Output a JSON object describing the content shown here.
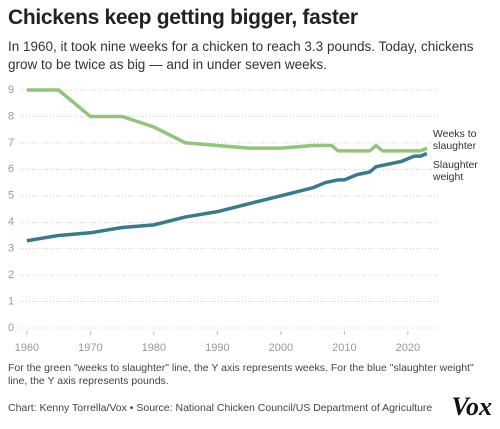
{
  "chart_data": {
    "type": "line",
    "title": "Chickens keep getting bigger, faster",
    "subtitle": "In 1960, it took nine weeks for a chicken to reach 3.3 pounds. Today, chickens grow to be twice as big — and in under seven weeks.",
    "note": "For the green \"weeks to slaughter\" line, the Y axis represents weeks. For the blue \"slaughter weight\" line, the Y axis represents pounds.",
    "source": "Chart: Kenny Torrella/Vox • Source: National Chicken Council/US Department of Agriculture",
    "logo": "Vox",
    "xlim": [
      1957.5,
      2025
    ],
    "xticks": [
      1960,
      1970,
      1980,
      1990,
      2000,
      2010,
      2020
    ],
    "ylim": [
      0,
      9
    ],
    "yticks": [
      0,
      1,
      2,
      3,
      4,
      5,
      6,
      7,
      8,
      9
    ],
    "grid": true,
    "series": [
      {
        "name": "Weeks to slaughter",
        "color": "#93c47d",
        "x": [
          1960,
          1965,
          1970,
          1975,
          1980,
          1985,
          1990,
          1995,
          2000,
          2005,
          2007,
          2008,
          2009,
          2010,
          2012,
          2014,
          2015,
          2016,
          2018,
          2020,
          2022,
          2023
        ],
        "values": [
          9,
          9,
          8,
          8,
          7.6,
          7,
          6.9,
          6.8,
          6.8,
          6.9,
          6.9,
          6.9,
          6.7,
          6.7,
          6.7,
          6.7,
          6.9,
          6.7,
          6.7,
          6.7,
          6.7,
          6.8
        ]
      },
      {
        "name": "Slaughter weight",
        "color": "#3b7b89",
        "x": [
          1960,
          1965,
          1970,
          1975,
          1980,
          1985,
          1990,
          1995,
          2000,
          2005,
          2007,
          2009,
          2010,
          2012,
          2014,
          2015,
          2017,
          2019,
          2020,
          2021,
          2022,
          2023
        ],
        "values": [
          3.3,
          3.5,
          3.6,
          3.8,
          3.9,
          4.2,
          4.4,
          4.7,
          5.0,
          5.3,
          5.5,
          5.6,
          5.6,
          5.8,
          5.9,
          6.1,
          6.2,
          6.3,
          6.4,
          6.5,
          6.5,
          6.6
        ]
      }
    ]
  }
}
